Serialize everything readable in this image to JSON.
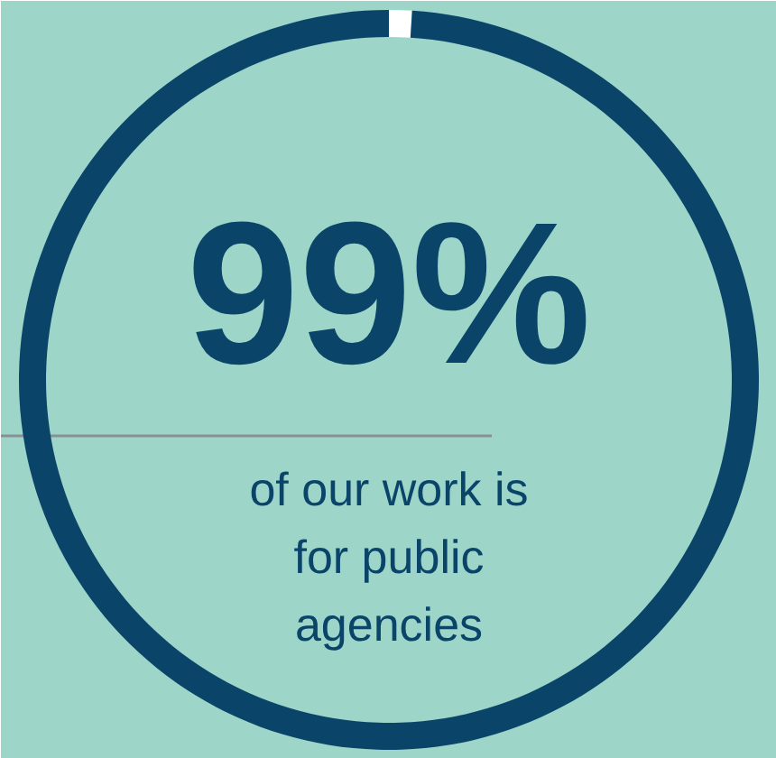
{
  "chart_data": {
    "type": "donut",
    "categories": [
      null,
      null
    ],
    "values": [
      1,
      99
    ],
    "colors": [
      "#ffffff",
      "#0b4469"
    ],
    "value_labels": [
      null,
      "99%"
    ],
    "annotations": [
      "of our work is\nfor public\nagencies"
    ]
  }
}
